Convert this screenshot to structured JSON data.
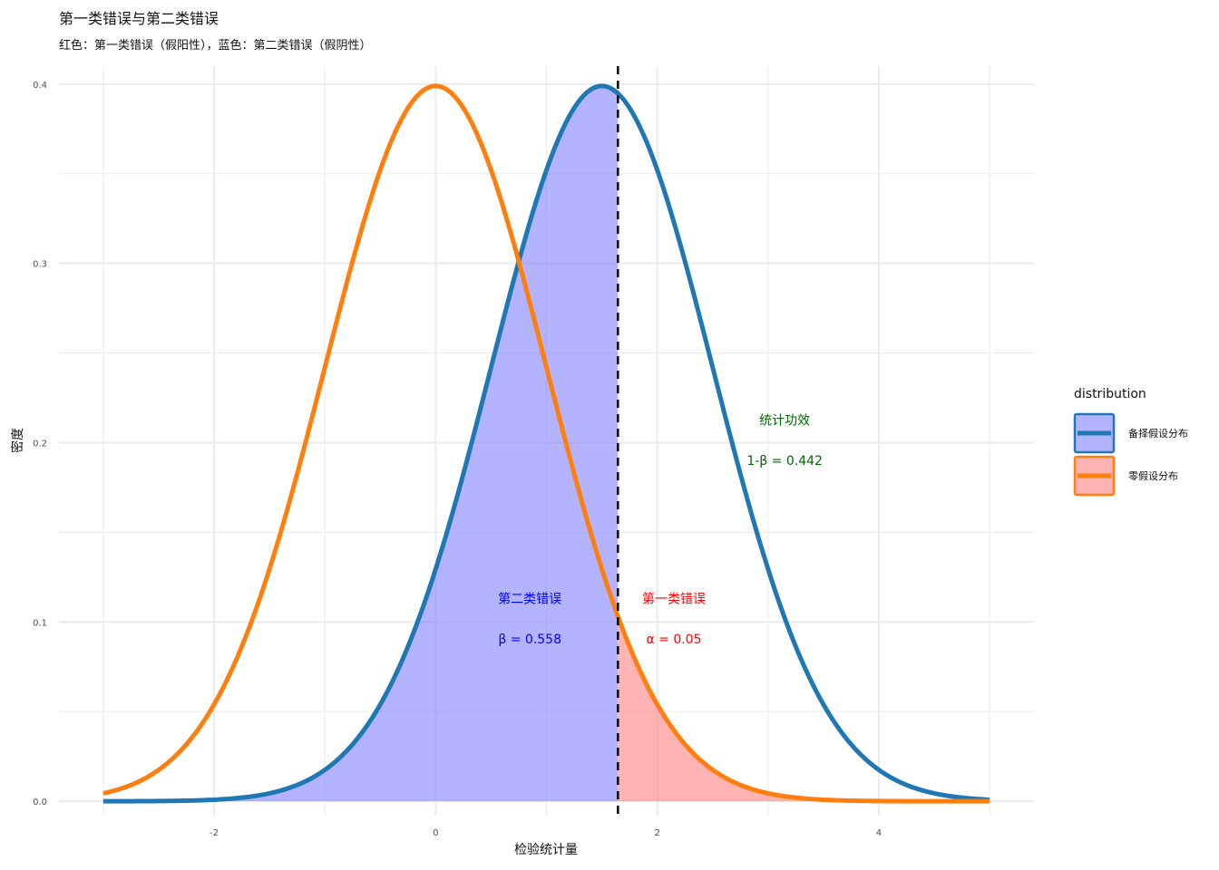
{
  "chart_data": {
    "type": "area",
    "title": "第一类错误与第二类错误",
    "subtitle": "红色：第一类错误（假阳性），蓝色：第二类错误（假阴性）",
    "xlabel": "检验统计量",
    "ylabel": "密度",
    "xlim": [
      -3.4,
      5.4
    ],
    "ylim": [
      -0.008,
      0.41
    ],
    "x_ticks": [
      -2,
      0,
      2,
      4
    ],
    "x_tick_labels": [
      "-2",
      "0",
      "2",
      "4"
    ],
    "y_ticks": [
      0.0,
      0.1,
      0.2,
      0.3,
      0.4
    ],
    "y_tick_labels": [
      "0.0",
      "0.1",
      "0.2",
      "0.3",
      "0.4"
    ],
    "grid": true,
    "legend_title": "distribution",
    "legend_position": "right",
    "critical_value": 1.645,
    "series": [
      {
        "name": "备择假设分布",
        "distribution": "normal",
        "mean": 1.5,
        "sd": 1,
        "x_range": [
          -3,
          5
        ],
        "color": "#1f77b4",
        "fill": "#8080ff"
      },
      {
        "name": "零假设分布",
        "distribution": "normal",
        "mean": 0,
        "sd": 1,
        "x_range": [
          -3,
          5
        ],
        "color": "#ff7f0e",
        "fill": "#ff8080"
      }
    ],
    "shaded_regions": [
      {
        "label": "第二类错误",
        "value_label": "β = 0.558",
        "under": "备择假设分布",
        "x_range": [
          -3,
          1.645
        ],
        "color": "#0000ff"
      },
      {
        "label": "第一类错误",
        "value_label": "α = 0.05",
        "under": "零假设分布",
        "x_range": [
          1.645,
          5
        ],
        "color": "#ff0000"
      }
    ],
    "annotations": [
      {
        "text": "统计功效",
        "x": 3.15,
        "y": 0.21,
        "color": "#006400"
      },
      {
        "text": "1-β = 0.442",
        "x": 3.15,
        "y": 0.1875,
        "color": "#006400"
      },
      {
        "text": "第二类错误",
        "x": 0.85,
        "y": 0.1105,
        "color": "#0000ff"
      },
      {
        "text": "β = 0.558",
        "x": 0.85,
        "y": 0.088,
        "color": "#0000ff"
      },
      {
        "text": "第一类错误",
        "x": 2.15,
        "y": 0.1105,
        "color": "#ff0000"
      },
      {
        "text": "α = 0.05",
        "x": 2.15,
        "y": 0.088,
        "color": "#ff0000"
      }
    ]
  }
}
